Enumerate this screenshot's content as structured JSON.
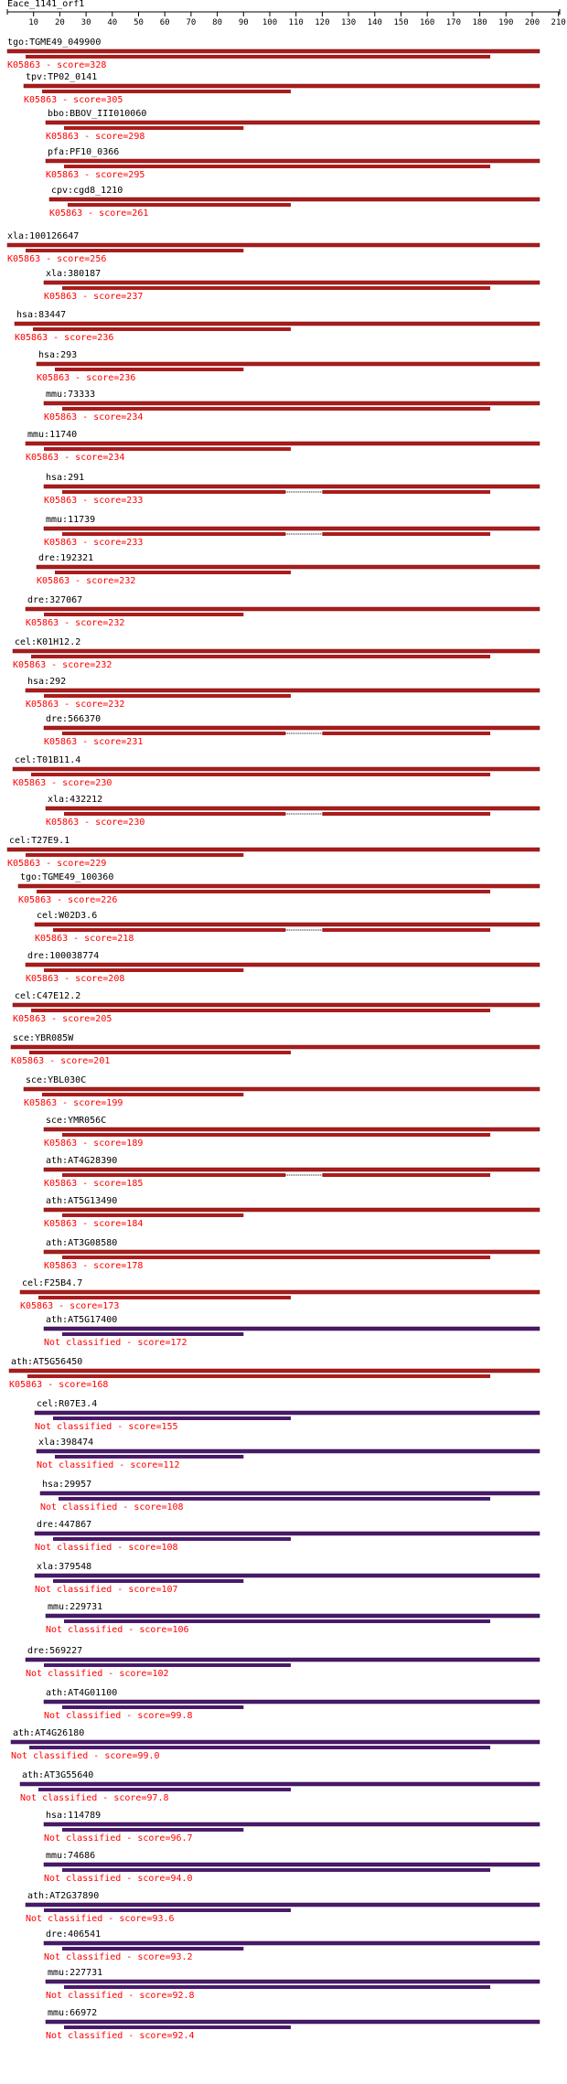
{
  "query": "Eace_1141_orf1",
  "axis": {
    "ticks": [
      "10",
      "20",
      "30",
      "40",
      "50",
      "60",
      "70",
      "80",
      "90",
      "100",
      "110",
      "120",
      "130",
      "140",
      "150",
      "160",
      "170",
      "180",
      "190",
      "200",
      "210"
    ]
  },
  "colors": {
    "ko_label": "#ff0000",
    "bar_ko": "#aa1c1c",
    "bar_ko_dark": "#7a0d0d",
    "bar_nc": "#4a1a6a",
    "bar_nc_dark": "#2e0b48",
    "text": "#000000"
  },
  "entries": [
    {
      "gene": "tgo:TGME49_049900",
      "ann": "K05863 - score=328",
      "group": "ko"
    },
    {
      "gene": "tpv:TP02_0141",
      "ann": "K05863 - score=305",
      "group": "ko"
    },
    {
      "gene": "bbo:BBOV_III010060",
      "ann": "K05863 - score=298",
      "group": "ko"
    },
    {
      "gene": "pfa:PF10_0366",
      "ann": "K05863 - score=295",
      "group": "ko"
    },
    {
      "gene": "cpv:cgd8_1210",
      "ann": "K05863 - score=261",
      "group": "ko"
    },
    {
      "gene": "xla:100126647",
      "ann": "K05863 - score=256",
      "group": "ko"
    },
    {
      "gene": "xla:380187",
      "ann": "K05863 - score=237",
      "group": "ko"
    },
    {
      "gene": "hsa:83447",
      "ann": "K05863 - score=236",
      "group": "ko"
    },
    {
      "gene": "hsa:293",
      "ann": "K05863 - score=236",
      "group": "ko"
    },
    {
      "gene": "mmu:73333",
      "ann": "K05863 - score=234",
      "group": "ko"
    },
    {
      "gene": "mmu:11740",
      "ann": "K05863 - score=234",
      "group": "ko"
    },
    {
      "gene": "hsa:291",
      "ann": "K05863 - score=233",
      "group": "ko"
    },
    {
      "gene": "mmu:11739",
      "ann": "K05863 - score=233",
      "group": "ko"
    },
    {
      "gene": "dre:192321",
      "ann": "K05863 - score=232",
      "group": "ko"
    },
    {
      "gene": "dre:327067",
      "ann": "K05863 - score=232",
      "group": "ko"
    },
    {
      "gene": "cel:K01H12.2",
      "ann": "K05863 - score=232",
      "group": "ko"
    },
    {
      "gene": "hsa:292",
      "ann": "K05863 - score=232",
      "group": "ko"
    },
    {
      "gene": "dre:566370",
      "ann": "K05863 - score=231",
      "group": "ko"
    },
    {
      "gene": "cel:T01B11.4",
      "ann": "K05863 - score=230",
      "group": "ko"
    },
    {
      "gene": "xla:432212",
      "ann": "K05863 - score=230",
      "group": "ko"
    },
    {
      "gene": "cel:T27E9.1",
      "ann": "K05863 - score=229",
      "group": "ko"
    },
    {
      "gene": "tgo:TGME49_100360",
      "ann": "K05863 - score=226",
      "group": "ko"
    },
    {
      "gene": "cel:W02D3.6",
      "ann": "K05863 - score=218",
      "group": "ko"
    },
    {
      "gene": "dre:100038774",
      "ann": "K05863 - score=208",
      "group": "ko"
    },
    {
      "gene": "cel:C47E12.2",
      "ann": "K05863 - score=205",
      "group": "ko"
    },
    {
      "gene": "sce:YBR085W",
      "ann": "K05863 - score=201",
      "group": "ko"
    },
    {
      "gene": "sce:YBL030C",
      "ann": "K05863 - score=199",
      "group": "ko"
    },
    {
      "gene": "sce:YMR056C",
      "ann": "K05863 - score=189",
      "group": "ko"
    },
    {
      "gene": "ath:AT4G28390",
      "ann": "K05863 - score=185",
      "group": "ko"
    },
    {
      "gene": "ath:AT5G13490",
      "ann": "K05863 - score=184",
      "group": "ko"
    },
    {
      "gene": "ath:AT3G08580",
      "ann": "K05863 - score=178",
      "group": "ko"
    },
    {
      "gene": "cel:F25B4.7",
      "ann": "K05863 - score=173",
      "group": "ko"
    },
    {
      "gene": "ath:AT5G17400",
      "ann": "Not classified - score=172",
      "group": "nc"
    },
    {
      "gene": "ath:AT5G56450",
      "ann": "K05863 - score=168",
      "group": "ko"
    },
    {
      "gene": "cel:R07E3.4",
      "ann": "Not classified - score=155",
      "group": "nc"
    },
    {
      "gene": "xla:398474",
      "ann": "Not classified - score=112",
      "group": "nc"
    },
    {
      "gene": "hsa:29957",
      "ann": "Not classified - score=108",
      "group": "nc"
    },
    {
      "gene": "dre:447867",
      "ann": "Not classified - score=108",
      "group": "nc"
    },
    {
      "gene": "xla:379548",
      "ann": "Not classified - score=107",
      "group": "nc"
    },
    {
      "gene": "mmu:229731",
      "ann": "Not classified - score=106",
      "group": "nc"
    },
    {
      "gene": "dre:569227",
      "ann": "Not classified - score=102",
      "group": "nc"
    },
    {
      "gene": "ath:AT4G01100",
      "ann": "Not classified - score=99.8",
      "group": "nc"
    },
    {
      "gene": "ath:AT4G26180",
      "ann": "Not classified - score=99.0",
      "group": "nc"
    },
    {
      "gene": "ath:AT3G55640",
      "ann": "Not classified - score=97.8",
      "group": "nc"
    },
    {
      "gene": "hsa:114789",
      "ann": "Not classified - score=96.7",
      "group": "nc"
    },
    {
      "gene": "mmu:74686",
      "ann": "Not classified - score=94.0",
      "group": "nc"
    },
    {
      "gene": "ath:AT2G37890",
      "ann": "Not classified - score=93.6",
      "group": "nc"
    },
    {
      "gene": "dre:406541",
      "ann": "Not classified - score=93.2",
      "group": "nc"
    },
    {
      "gene": "mmu:227731",
      "ann": "Not classified - score=92.8",
      "group": "nc"
    },
    {
      "gene": "mmu:66972",
      "ann": "Not classified - score=92.4",
      "group": "nc"
    }
  ]
}
